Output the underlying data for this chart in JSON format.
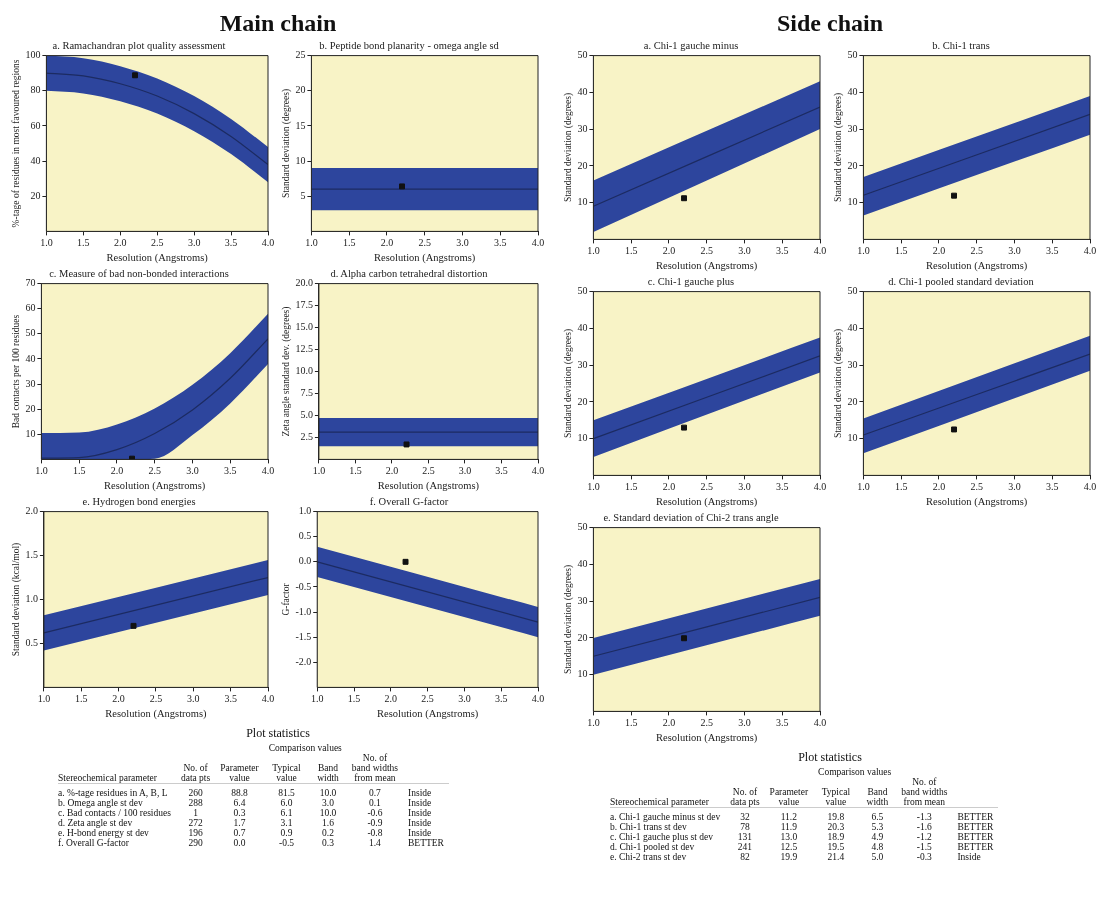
{
  "chart_data": [
    {
      "type": "other",
      "title": "Main chain"
    },
    {
      "type": "line",
      "title": "a. Ramachandran plot quality assessment",
      "xlabel": "Resolution (Angstroms)",
      "ylabel": "%-tage of residues in most favoured regions",
      "xlim": [
        1,
        4
      ],
      "xticks": [
        {
          "value": 1,
          "label": "1.0"
        },
        {
          "value": 1.5,
          "label": "1.5"
        },
        {
          "value": 2,
          "label": "2.0"
        },
        {
          "value": 2.5,
          "label": "2.5"
        },
        {
          "value": 3,
          "label": "3.0"
        },
        {
          "value": 3.5,
          "label": "3.5"
        },
        {
          "value": 4,
          "label": "4.0"
        }
      ],
      "ylim": [
        0,
        100
      ],
      "yticks": [
        20,
        40,
        60,
        80,
        100
      ],
      "grid": false,
      "series": [
        {
          "type": "line",
          "color": "#1c2b62",
          "x": [
            1,
            1.5,
            2,
            2.5,
            3,
            3.5,
            4
          ],
          "values": [
            90,
            88.5,
            84,
            77,
            67,
            54,
            38
          ],
          "lower": [
            80,
            78.5,
            74,
            67,
            57,
            44,
            28
          ],
          "upper": [
            100,
            98.5,
            94,
            87,
            77,
            64,
            48
          ]
        },
        {
          "type": "scatter",
          "color": "#111111",
          "marker": "square",
          "x": [
            2.2
          ],
          "values": [
            88.8
          ]
        }
      ]
    },
    {
      "type": "line",
      "title": "b. Peptide bond planarity - omega angle sd",
      "xlabel": "Resolution (Angstroms)",
      "ylabel": "Standard deviation (degrees)",
      "xlim": [
        1,
        4
      ],
      "xticks": [
        {
          "value": 1,
          "label": "1.0"
        },
        {
          "value": 1.5,
          "label": "1.5"
        },
        {
          "value": 2,
          "label": "2.0"
        },
        {
          "value": 2.5,
          "label": "2.5"
        },
        {
          "value": 3,
          "label": "3.0"
        },
        {
          "value": 3.5,
          "label": "3.5"
        },
        {
          "value": 4,
          "label": "4.0"
        }
      ],
      "ylim": [
        0,
        25
      ],
      "yticks": [
        5,
        10,
        15,
        20,
        25
      ],
      "grid": false,
      "series": [
        {
          "type": "line",
          "color": "#1c2b62",
          "x": [
            1,
            4
          ],
          "values": [
            6,
            6
          ],
          "lower": [
            3,
            3
          ],
          "upper": [
            9,
            9
          ]
        },
        {
          "type": "scatter",
          "color": "#111111",
          "marker": "square",
          "x": [
            2.2
          ],
          "values": [
            6.4
          ]
        }
      ]
    },
    {
      "type": "line",
      "title": "c. Measure of bad non-bonded interactions",
      "xlabel": "Resolution (Angstroms)",
      "ylabel": "Bad contacts per 100 residues",
      "xlim": [
        1,
        4
      ],
      "xticks": [
        {
          "value": 1,
          "label": "1.0"
        },
        {
          "value": 1.5,
          "label": "1.5"
        },
        {
          "value": 2,
          "label": "2.0"
        },
        {
          "value": 2.5,
          "label": "2.5"
        },
        {
          "value": 3,
          "label": "3.0"
        },
        {
          "value": 3.5,
          "label": "3.5"
        },
        {
          "value": 4,
          "label": "4.0"
        }
      ],
      "ylim": [
        0,
        70
      ],
      "yticks": [
        10,
        20,
        30,
        40,
        50,
        60,
        70
      ],
      "grid": false,
      "series": [
        {
          "type": "line",
          "color": "#1c2b62",
          "x": [
            1,
            1.5,
            2,
            2.5,
            3,
            3.5,
            4
          ],
          "values": [
            0.5,
            0.7,
            3.9,
            10.3,
            19.7,
            32.3,
            48
          ],
          "lower": [
            0,
            0,
            0,
            0.3,
            9.7,
            22.3,
            38
          ],
          "upper": [
            10.5,
            10.7,
            13.9,
            20.3,
            29.7,
            42.3,
            58
          ]
        },
        {
          "type": "scatter",
          "color": "#111111",
          "marker": "square",
          "x": [
            2.2
          ],
          "values": [
            0.3
          ]
        }
      ]
    },
    {
      "type": "line",
      "title": "d. Alpha carbon tetrahedral distortion",
      "xlabel": "Resolution (Angstroms)",
      "ylabel": "Zeta angle standard dev. (degrees)",
      "xlim": [
        1,
        4
      ],
      "xticks": [
        {
          "value": 1,
          "label": "1.0"
        },
        {
          "value": 1.5,
          "label": "1.5"
        },
        {
          "value": 2,
          "label": "2.0"
        },
        {
          "value": 2.5,
          "label": "2.5"
        },
        {
          "value": 3,
          "label": "3.0"
        },
        {
          "value": 3.5,
          "label": "3.5"
        },
        {
          "value": 4,
          "label": "4.0"
        }
      ],
      "ylim": [
        0,
        20
      ],
      "yticks": [
        2.5,
        {
          "value": 5,
          "label": "5.0"
        },
        7.5,
        {
          "value": 10,
          "label": "10.0"
        },
        12.5,
        {
          "value": 15,
          "label": "15.0"
        },
        17.5,
        {
          "value": 20,
          "label": "20.0"
        }
      ],
      "grid": false,
      "series": [
        {
          "type": "line",
          "color": "#1c2b62",
          "x": [
            1,
            4
          ],
          "values": [
            3.1,
            3.1
          ],
          "lower": [
            1.5,
            1.5
          ],
          "upper": [
            4.7,
            4.7
          ]
        },
        {
          "type": "scatter",
          "color": "#111111",
          "marker": "square",
          "x": [
            2.2
          ],
          "values": [
            1.7
          ]
        }
      ]
    },
    {
      "type": "line",
      "title": "e. Hydrogen bond energies",
      "xlabel": "Resolution (Angstroms)",
      "ylabel": "Standard deviation (kcal/mol)",
      "xlim": [
        1,
        4
      ],
      "xticks": [
        {
          "value": 1,
          "label": "1.0"
        },
        {
          "value": 1.5,
          "label": "1.5"
        },
        {
          "value": 2,
          "label": "2.0"
        },
        {
          "value": 2.5,
          "label": "2.5"
        },
        {
          "value": 3,
          "label": "3.0"
        },
        {
          "value": 3.5,
          "label": "3.5"
        },
        {
          "value": 4,
          "label": "4.0"
        }
      ],
      "ylim": [
        0,
        2
      ],
      "yticks": [
        0.5,
        {
          "value": 1,
          "label": "1.0"
        },
        1.5,
        {
          "value": 2,
          "label": "2.0"
        }
      ],
      "grid": false,
      "series": [
        {
          "type": "line",
          "color": "#1c2b62",
          "x": [
            1,
            4
          ],
          "values": [
            0.62,
            1.25
          ],
          "lower": [
            0.42,
            1.05
          ],
          "upper": [
            0.82,
            1.45
          ]
        },
        {
          "type": "scatter",
          "color": "#111111",
          "marker": "square",
          "x": [
            2.2
          ],
          "values": [
            0.7
          ]
        }
      ]
    },
    {
      "type": "line",
      "title": "f. Overall G-factor",
      "xlabel": "Resolution (Angstroms)",
      "ylabel": "G-factor",
      "xlim": [
        1,
        4
      ],
      "xticks": [
        {
          "value": 1,
          "label": "1.0"
        },
        {
          "value": 1.5,
          "label": "1.5"
        },
        {
          "value": 2,
          "label": "2.0"
        },
        {
          "value": 2.5,
          "label": "2.5"
        },
        {
          "value": 3,
          "label": "3.0"
        },
        {
          "value": 3.5,
          "label": "3.5"
        },
        {
          "value": 4,
          "label": "4.0"
        }
      ],
      "ylim": [
        -2.5,
        1
      ],
      "yticks": [
        {
          "value": -2,
          "label": "-2.0"
        },
        -1.5,
        {
          "value": -1,
          "label": "-1.0"
        },
        -0.5,
        {
          "value": 0,
          "label": "0.0"
        },
        0.5,
        {
          "value": 1,
          "label": "1.0"
        }
      ],
      "grid": false,
      "series": [
        {
          "type": "line",
          "color": "#1c2b62",
          "x": [
            1,
            4
          ],
          "values": [
            0,
            -1.2
          ],
          "lower": [
            -0.3,
            -1.5
          ],
          "upper": [
            0.3,
            -0.9
          ]
        },
        {
          "type": "scatter",
          "color": "#111111",
          "marker": "square",
          "x": [
            2.2
          ],
          "values": [
            0.0
          ]
        }
      ]
    },
    {
      "type": "other",
      "title": "Plot statistics",
      "annotations": [
        "Stereochemical parameter",
        "Comparison values"
      ],
      "categories": [
        "a. %-tage residues in A, B, L",
        "b. Omega angle st dev",
        "c. Bad contacts / 100 residues",
        "d. Zeta angle st dev",
        "e. H-bond energy st dev",
        "f. Overall G-factor"
      ],
      "series": [
        {
          "name": "No. of\ndata pts",
          "values": [
            260,
            288,
            1,
            272,
            196,
            290
          ],
          "value_labels": [
            "260",
            "288",
            "1",
            "272",
            "196",
            "290"
          ]
        },
        {
          "name": "Parameter\nvalue",
          "values": [
            88.8,
            6.4,
            0.3,
            1.7,
            0.7,
            0.0
          ],
          "value_labels": [
            "88.8",
            "6.4",
            "0.3",
            "1.7",
            "0.7",
            "0.0"
          ]
        },
        {
          "name": "Typical\nvalue",
          "values": [
            81.5,
            6.0,
            6.1,
            3.1,
            0.9,
            -0.5
          ],
          "value_labels": [
            "81.5",
            "6.0",
            "6.1",
            "3.1",
            "0.9",
            "-0.5"
          ]
        },
        {
          "name": "Band\nwidth",
          "values": [
            10.0,
            3.0,
            10.0,
            1.6,
            0.2,
            0.3
          ],
          "value_labels": [
            "10.0",
            "3.0",
            "10.0",
            "1.6",
            "0.2",
            "0.3"
          ]
        },
        {
          "name": "No. of\nband widths\nfrom mean",
          "values": [
            0.7,
            0.1,
            -0.6,
            -0.9,
            -0.8,
            1.4
          ],
          "value_labels": [
            "0.7",
            "0.1",
            "-0.6",
            "-0.9",
            "-0.8",
            "1.4"
          ]
        },
        {
          "values": [
            null,
            null,
            null,
            null,
            null,
            null
          ],
          "value_labels": [
            "Inside",
            "Inside",
            "Inside",
            "Inside",
            "Inside",
            "BETTER"
          ]
        }
      ]
    },
    {
      "type": "other",
      "title": "Side chain"
    },
    {
      "type": "line",
      "title": "a. Chi-1 gauche minus",
      "xlabel": "Resolution (Angstroms)",
      "ylabel": "Standard deviation (degrees)",
      "xlim": [
        1,
        4
      ],
      "xticks": [
        {
          "value": 1,
          "label": "1.0"
        },
        {
          "value": 1.5,
          "label": "1.5"
        },
        {
          "value": 2,
          "label": "2.0"
        },
        {
          "value": 2.5,
          "label": "2.5"
        },
        {
          "value": 3,
          "label": "3.0"
        },
        {
          "value": 3.5,
          "label": "3.5"
        },
        {
          "value": 4,
          "label": "4.0"
        }
      ],
      "ylim": [
        0,
        50
      ],
      "yticks": [
        10,
        20,
        30,
        40,
        50
      ],
      "grid": false,
      "series": [
        {
          "type": "line",
          "color": "#1c2b62",
          "x": [
            1,
            4
          ],
          "values": [
            9,
            36
          ],
          "lower": [
            2,
            30
          ],
          "upper": [
            16,
            43
          ]
        },
        {
          "type": "scatter",
          "color": "#111111",
          "marker": "square",
          "x": [
            2.2
          ],
          "values": [
            11.2
          ]
        }
      ]
    },
    {
      "type": "line",
      "title": "b. Chi-1 trans",
      "xlabel": "Resolution (Angstroms)",
      "ylabel": "Standard deviation (degrees)",
      "xlim": [
        1,
        4
      ],
      "xticks": [
        {
          "value": 1,
          "label": "1.0"
        },
        {
          "value": 1.5,
          "label": "1.5"
        },
        {
          "value": 2,
          "label": "2.0"
        },
        {
          "value": 2.5,
          "label": "2.5"
        },
        {
          "value": 3,
          "label": "3.0"
        },
        {
          "value": 3.5,
          "label": "3.5"
        },
        {
          "value": 4,
          "label": "4.0"
        }
      ],
      "ylim": [
        0,
        50
      ],
      "yticks": [
        10,
        20,
        30,
        40,
        50
      ],
      "grid": false,
      "series": [
        {
          "type": "line",
          "color": "#1c2b62",
          "x": [
            1,
            4
          ],
          "values": [
            12,
            34
          ],
          "lower": [
            6.5,
            28.5
          ],
          "upper": [
            17,
            39
          ]
        },
        {
          "type": "scatter",
          "color": "#111111",
          "marker": "square",
          "x": [
            2.2
          ],
          "values": [
            11.9
          ]
        }
      ]
    },
    {
      "type": "line",
      "title": "c. Chi-1 gauche plus",
      "xlabel": "Resolution (Angstroms)",
      "ylabel": "Standard deviation (degrees)",
      "xlim": [
        1,
        4
      ],
      "xticks": [
        {
          "value": 1,
          "label": "1.0"
        },
        {
          "value": 1.5,
          "label": "1.5"
        },
        {
          "value": 2,
          "label": "2.0"
        },
        {
          "value": 2.5,
          "label": "2.5"
        },
        {
          "value": 3,
          "label": "3.0"
        },
        {
          "value": 3.5,
          "label": "3.5"
        },
        {
          "value": 4,
          "label": "4.0"
        }
      ],
      "ylim": [
        0,
        50
      ],
      "yticks": [
        10,
        20,
        30,
        40,
        50
      ],
      "grid": false,
      "series": [
        {
          "type": "line",
          "color": "#1c2b62",
          "x": [
            1,
            4
          ],
          "values": [
            10,
            32.5
          ],
          "lower": [
            5,
            28
          ],
          "upper": [
            15,
            37.5
          ]
        },
        {
          "type": "scatter",
          "color": "#111111",
          "marker": "square",
          "x": [
            2.2
          ],
          "values": [
            13.0
          ]
        }
      ]
    },
    {
      "type": "line",
      "title": "d. Chi-1 pooled standard deviation",
      "xlabel": "Resolution (Angstroms)",
      "ylabel": "Standard deviation (degrees)",
      "xlim": [
        1,
        4
      ],
      "xticks": [
        {
          "value": 1,
          "label": "1.0"
        },
        {
          "value": 1.5,
          "label": "1.5"
        },
        {
          "value": 2,
          "label": "2.0"
        },
        {
          "value": 2.5,
          "label": "2.5"
        },
        {
          "value": 3,
          "label": "3.0"
        },
        {
          "value": 3.5,
          "label": "3.5"
        },
        {
          "value": 4,
          "label": "4.0"
        }
      ],
      "ylim": [
        0,
        50
      ],
      "yticks": [
        10,
        20,
        30,
        40,
        50
      ],
      "grid": false,
      "series": [
        {
          "type": "line",
          "color": "#1c2b62",
          "x": [
            1,
            4
          ],
          "values": [
            11,
            33
          ],
          "lower": [
            6,
            28.5
          ],
          "upper": [
            15.5,
            38
          ]
        },
        {
          "type": "scatter",
          "color": "#111111",
          "marker": "square",
          "x": [
            2.2
          ],
          "values": [
            12.5
          ]
        }
      ]
    },
    {
      "type": "line",
      "title": "e. Standard deviation of Chi-2 trans angle",
      "xlabel": "Resolution (Angstroms)",
      "ylabel": "Standard deviation (degrees)",
      "xlim": [
        1,
        4
      ],
      "xticks": [
        {
          "value": 1,
          "label": "1.0"
        },
        {
          "value": 1.5,
          "label": "1.5"
        },
        {
          "value": 2,
          "label": "2.0"
        },
        {
          "value": 2.5,
          "label": "2.5"
        },
        {
          "value": 3,
          "label": "3.0"
        },
        {
          "value": 3.5,
          "label": "3.5"
        },
        {
          "value": 4,
          "label": "4.0"
        }
      ],
      "ylim": [
        0,
        50
      ],
      "yticks": [
        10,
        20,
        30,
        40,
        50
      ],
      "grid": false,
      "series": [
        {
          "type": "line",
          "color": "#1c2b62",
          "x": [
            1,
            4
          ],
          "values": [
            15,
            31
          ],
          "lower": [
            10,
            26
          ],
          "upper": [
            20,
            36
          ]
        },
        {
          "type": "scatter",
          "color": "#111111",
          "marker": "square",
          "x": [
            2.2
          ],
          "values": [
            19.9
          ]
        }
      ]
    },
    {
      "type": "other",
      "title": "Plot statistics",
      "annotations": [
        "Stereochemical parameter",
        "Comparison values"
      ],
      "categories": [
        "a. Chi-1 gauche minus st dev",
        "b. Chi-1 trans st dev",
        "c. Chi-1 gauche plus st dev",
        "d. Chi-1 pooled st dev",
        "e. Chi-2 trans st dev"
      ],
      "series": [
        {
          "name": "No. of\ndata pts",
          "values": [
            32,
            78,
            131,
            241,
            82
          ],
          "value_labels": [
            "32",
            "78",
            "131",
            "241",
            "82"
          ]
        },
        {
          "name": "Parameter\nvalue",
          "values": [
            11.2,
            11.9,
            13.0,
            12.5,
            19.9
          ],
          "value_labels": [
            "11.2",
            "11.9",
            "13.0",
            "12.5",
            "19.9"
          ]
        },
        {
          "name": "Typical\nvalue",
          "values": [
            19.8,
            20.3,
            18.9,
            19.5,
            21.4
          ],
          "value_labels": [
            "19.8",
            "20.3",
            "18.9",
            "19.5",
            "21.4"
          ]
        },
        {
          "name": "Band\nwidth",
          "values": [
            6.5,
            5.3,
            4.9,
            4.8,
            5.0
          ],
          "value_labels": [
            "6.5",
            "5.3",
            "4.9",
            "4.8",
            "5.0"
          ]
        },
        {
          "name": "No. of\nband widths\nfrom mean",
          "values": [
            -1.3,
            -1.6,
            -1.2,
            -1.5,
            -0.3
          ],
          "value_labels": [
            "-1.3",
            "-1.6",
            "-1.2",
            "-1.5",
            "-0.3"
          ]
        },
        {
          "values": [
            null,
            null,
            null,
            null,
            null
          ],
          "value_labels": [
            "BETTER",
            "BETTER",
            "BETTER",
            "BETTER",
            "Inside"
          ]
        }
      ]
    }
  ]
}
